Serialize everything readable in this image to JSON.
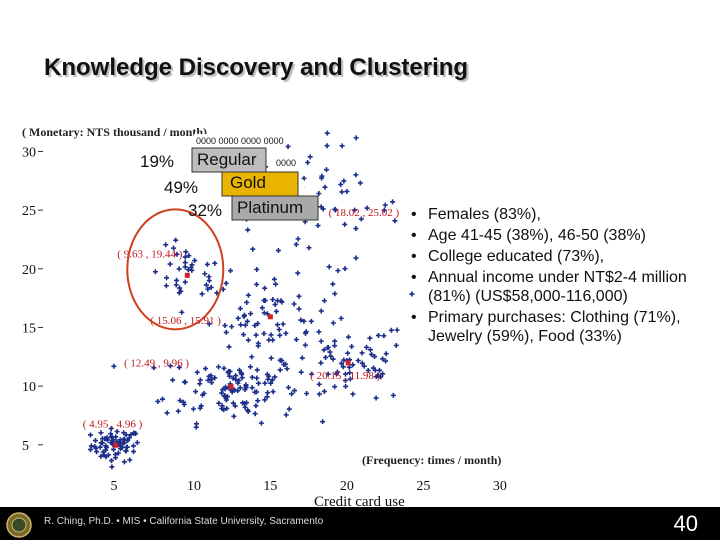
{
  "slide": {
    "title": "Knowledge Discovery and Clustering",
    "credit": "Credit card use",
    "footer": "R. Ching, Ph.D. • MIS • California State University, Sacramento",
    "page_number": "40"
  },
  "segments": [
    {
      "percent": "19%",
      "name": "Regular"
    },
    {
      "percent": "49%",
      "name": "Gold"
    },
    {
      "percent": "32%",
      "name": "Platinum"
    }
  ],
  "segment_codes": [
    "0000 0000 0000 0000",
    "0000",
    "0000"
  ],
  "bullets": [
    "Females (83%),",
    "Age 41-45 (38%), 46-50 (38%)",
    "College educated (73%),",
    "Annual income under NT$2-4 million (81%) (US$58,000-116,000)",
    "Primary purchases: Clothing (71%), Jewelry (59%), Food (33%)"
  ],
  "chart_data": {
    "type": "scatter",
    "ylabel": "( Monetary: NTS thousand / month)",
    "xlabel": "(Frequency: times / month)",
    "x_ticks": [
      "5",
      "10",
      "15",
      "20",
      "25",
      "30"
    ],
    "y_ticks": [
      "5",
      "10",
      "15",
      "20",
      "25",
      "30"
    ],
    "xlim": [
      0,
      34
    ],
    "ylim": [
      2,
      32
    ],
    "grid": false,
    "point_color": "#1c2e8a",
    "centroid_color": "#d0202c",
    "highlight_color": "#d0401c",
    "centroids": [
      {
        "label": "( 4.95 , 4.96 )",
        "x": 4.95,
        "y": 4.96
      },
      {
        "label": "( 9.63 , 19.44 )",
        "x": 9.63,
        "y": 19.44
      },
      {
        "label": "( 12.49 , 9.96 )",
        "x": 12.49,
        "y": 9.96
      },
      {
        "label": "( 15.06 , 15.91 )",
        "x": 15.06,
        "y": 15.91
      },
      {
        "label": "( 18.02 , 25.02 )",
        "x": 18.02,
        "y": 25.02
      },
      {
        "label": "( 20.15 , 11.98 )",
        "x": 20.15,
        "y": 11.98
      }
    ],
    "highlighted_cluster": "( 9.63 , 19.44 )",
    "cluster_spread": [
      {
        "x": 4.95,
        "y": 4.96,
        "sx": 0.8,
        "sy": 0.7,
        "n": 70
      },
      {
        "x": 9.63,
        "y": 19.44,
        "sx": 1.2,
        "sy": 1.2,
        "n": 35
      },
      {
        "x": 12.49,
        "y": 9.96,
        "sx": 2.2,
        "sy": 1.5,
        "n": 120
      },
      {
        "x": 15.06,
        "y": 15.91,
        "sx": 2.0,
        "sy": 1.6,
        "n": 60
      },
      {
        "x": 18.02,
        "y": 25.02,
        "sx": 2.8,
        "sy": 2.8,
        "n": 60
      },
      {
        "x": 20.15,
        "y": 11.98,
        "sx": 2.0,
        "sy": 1.8,
        "n": 70
      }
    ]
  }
}
